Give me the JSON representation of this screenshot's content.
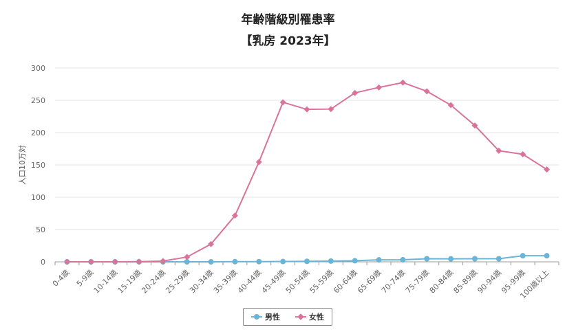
{
  "title_line1": "年齢階級別罹患率",
  "title_line2": "【乳房 2023年】",
  "chart_data": {
    "type": "line",
    "title": "年齢階級別罹患率 【乳房 2023年】",
    "ylabel": "人口10万対",
    "ylim": [
      0,
      300
    ],
    "yticks": [
      0,
      50,
      100,
      150,
      200,
      250,
      300
    ],
    "grid": true,
    "legend_position": "bottom-center",
    "categories": [
      "0-4歳",
      "5-9歳",
      "10-14歳",
      "15-19歳",
      "20-24歳",
      "25-29歳",
      "30-34歳",
      "35-39歳",
      "40-44歳",
      "45-49歳",
      "50-54歳",
      "55-59歳",
      "60-64歳",
      "65-69歳",
      "70-74歳",
      "75-79歳",
      "80-84歳",
      "85-89歳",
      "90-94歳",
      "95-99歳",
      "100歳以上"
    ],
    "series": [
      {
        "name": "男性",
        "color": "#6ab4d8",
        "marker": "circle",
        "values": [
          0,
          0,
          0,
          0,
          0,
          0,
          0,
          0.2,
          0.3,
          0.5,
          0.8,
          1.2,
          1.7,
          3,
          3.2,
          4.8,
          4.6,
          4.8,
          4.8,
          9.4,
          9.4
        ]
      },
      {
        "name": "女性",
        "color": "#d9739a",
        "marker": "diamond",
        "values": [
          0,
          0,
          0,
          0.2,
          1.2,
          7.5,
          27.5,
          71.5,
          154.5,
          247,
          236,
          236.5,
          261.5,
          270,
          277.5,
          264,
          242.5,
          211,
          172,
          166.5,
          143
        ]
      }
    ]
  }
}
